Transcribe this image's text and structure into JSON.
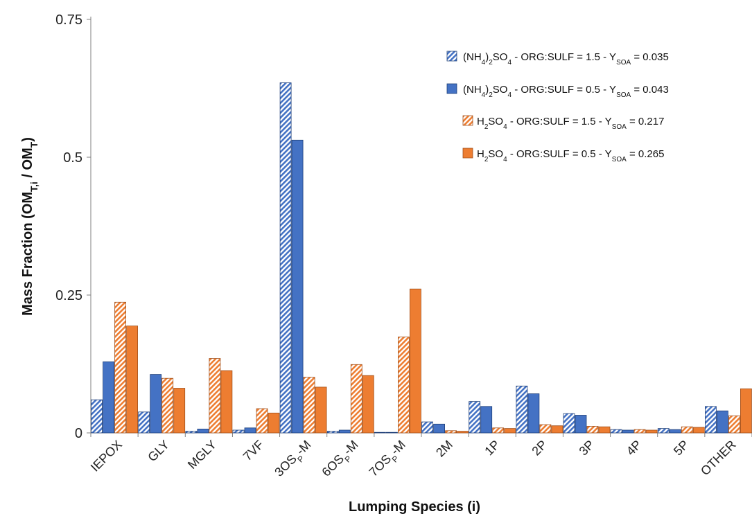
{
  "chart_data": {
    "type": "bar",
    "title": "",
    "xlabel": "Lumping Species (i)",
    "ylabel": {
      "main": "Mass Fraction (OM",
      "sub1": "T,i",
      "mid": " / OM",
      "sub2": "T",
      "end": ")"
    },
    "ylim": [
      0,
      0.75
    ],
    "yticks": [
      "0",
      "0.25",
      "0.5",
      "0.75"
    ],
    "categories": [
      {
        "main": "IEPOX"
      },
      {
        "main": "GLY"
      },
      {
        "main": "MGLY"
      },
      {
        "main": "7VF"
      },
      {
        "main": "3OS",
        "sub": "P",
        "tail": "-M"
      },
      {
        "main": "6OS",
        "sub": "P",
        "tail": "-M"
      },
      {
        "main": "7OS",
        "sub": "P",
        "tail": "-M"
      },
      {
        "main": "2M"
      },
      {
        "main": "1P"
      },
      {
        "main": "2P"
      },
      {
        "main": "3P"
      },
      {
        "main": "4P"
      },
      {
        "main": "5P"
      },
      {
        "main": "OTHER"
      }
    ],
    "legend_position": "top-right",
    "series": [
      {
        "legend": {
          "a": "(NH",
          "b": "4",
          "c": ")",
          "d": "2",
          "e": "SO",
          "f": "4",
          "g": " - ORG:SULF = 1.5 - Y",
          "h": "SOA",
          "i": " = 0.035"
        },
        "color": "#4472c4",
        "hatched": true,
        "values": [
          0.06,
          0.038,
          0.003,
          0.005,
          0.635,
          0.003,
          0.001,
          0.02,
          0.057,
          0.085,
          0.035,
          0.006,
          0.008,
          0.048
        ]
      },
      {
        "legend": {
          "a": "(NH",
          "b": "4",
          "c": ")",
          "d": "2",
          "e": "SO",
          "f": "4",
          "g": " - ORG:SULF = 0.5 - Y",
          "h": "SOA",
          "i": " = 0.043"
        },
        "color": "#4472c4",
        "hatched": false,
        "values": [
          0.129,
          0.106,
          0.007,
          0.009,
          0.531,
          0.005,
          0.001,
          0.016,
          0.048,
          0.071,
          0.032,
          0.005,
          0.006,
          0.04
        ]
      },
      {
        "legend": {
          "a": "H",
          "b": "2",
          "c": "",
          "d": "",
          "e": "SO",
          "f": "4",
          "g": " - ORG:SULF = 1.5 - Y",
          "h": "SOA",
          "i": " = 0.217"
        },
        "color": "#ed7d31",
        "hatched": true,
        "values": [
          0.237,
          0.099,
          0.135,
          0.044,
          0.101,
          0.124,
          0.174,
          0.004,
          0.009,
          0.015,
          0.012,
          0.006,
          0.011,
          0.031
        ]
      },
      {
        "legend": {
          "a": "H",
          "b": "2",
          "c": "",
          "d": "",
          "e": "SO",
          "f": "4",
          "g": " - ORG:SULF = 0.5 - Y",
          "h": "SOA",
          "i": " = 0.265"
        },
        "color": "#ed7d31",
        "hatched": false,
        "values": [
          0.194,
          0.081,
          0.113,
          0.036,
          0.083,
          0.104,
          0.261,
          0.003,
          0.008,
          0.013,
          0.011,
          0.005,
          0.01,
          0.08
        ]
      }
    ]
  }
}
